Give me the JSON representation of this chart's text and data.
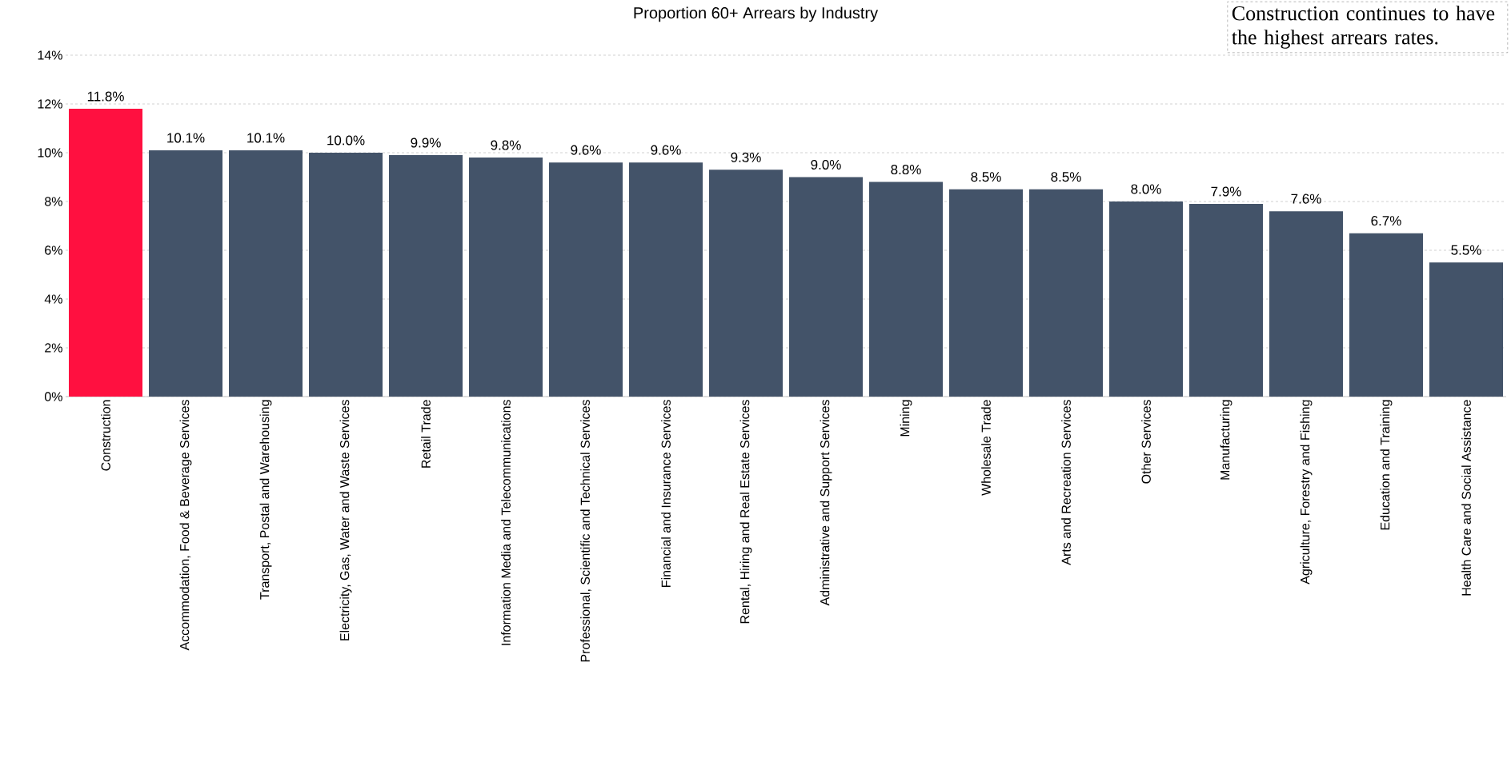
{
  "chart_data": {
    "type": "bar",
    "title": "Proportion 60+ Arrears by Industry",
    "categories": [
      "Construction",
      "Accommodation, Food & Beverage Services",
      "Transport, Postal and Warehousing",
      "Electricity, Gas, Water and Waste Services",
      "Retail Trade",
      "Information Media and Telecommunications",
      "Professional, Scientific and Technical Services",
      "Financial and Insurance Services",
      "Rental, Hiring and Real Estate Services",
      "Administrative and Support Services",
      "Mining",
      "Wholesale Trade",
      "Arts and Recreation Services",
      "Other Services",
      "Manufacturing",
      "Agriculture, Forestry and Fishing",
      "Education and Training",
      "Health Care and Social Assistance"
    ],
    "values": [
      11.8,
      10.1,
      10.1,
      10.0,
      9.9,
      9.8,
      9.6,
      9.6,
      9.3,
      9.0,
      8.8,
      8.5,
      8.5,
      8.0,
      7.9,
      7.6,
      6.7,
      5.5
    ],
    "value_labels": [
      "11.8%",
      "10.1%",
      "10.1%",
      "10.0%",
      "9.9%",
      "9.8%",
      "9.6%",
      "9.6%",
      "9.3%",
      "9.0%",
      "8.8%",
      "8.5%",
      "8.5%",
      "8.0%",
      "7.9%",
      "7.6%",
      "6.7%",
      "5.5%"
    ],
    "colors": [
      "#ff1040",
      "#435369",
      "#435369",
      "#435369",
      "#435369",
      "#435369",
      "#435369",
      "#435369",
      "#435369",
      "#435369",
      "#435369",
      "#435369",
      "#435369",
      "#435369",
      "#435369",
      "#435369",
      "#435369",
      "#435369"
    ],
    "ylim": [
      0,
      14
    ],
    "yticks": [
      {
        "value": 0,
        "label": "0%"
      },
      {
        "value": 2,
        "label": "2%"
      },
      {
        "value": 4,
        "label": "4%"
      },
      {
        "value": 6,
        "label": "6%"
      },
      {
        "value": 8,
        "label": "8%"
      },
      {
        "value": 10,
        "label": "10%"
      },
      {
        "value": 12,
        "label": "12%"
      },
      {
        "value": 14,
        "label": "14%"
      }
    ],
    "grid": "y",
    "annotations": [
      "Construction continues to have the highest arrears rates."
    ]
  }
}
